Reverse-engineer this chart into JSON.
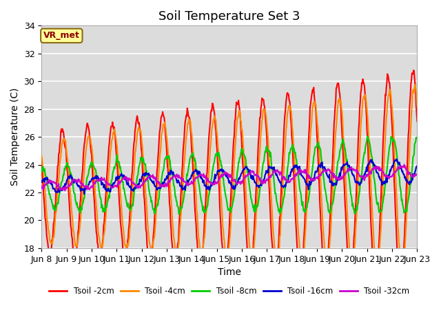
{
  "title": "Soil Temperature Set 3",
  "xlabel": "Time",
  "ylabel": "Soil Temperature (C)",
  "ylim": [
    18,
    34
  ],
  "background_color": "#dcdcdc",
  "grid_color": "white",
  "annotation_text": "VR_met",
  "annotation_bg": "#ffff99",
  "annotation_border": "#8B6914",
  "legend_labels": [
    "Tsoil -2cm",
    "Tsoil -4cm",
    "Tsoil -8cm",
    "Tsoil -16cm",
    "Tsoil -32cm"
  ],
  "line_colors": [
    "#ff0000",
    "#ff8800",
    "#00cc00",
    "#0000cc",
    "#cc00cc"
  ],
  "line_widths": [
    1.5,
    1.5,
    1.5,
    1.5,
    1.5
  ],
  "tick_label_fontsize": 9,
  "axis_label_fontsize": 10,
  "title_fontsize": 13,
  "yticks": [
    18,
    20,
    22,
    24,
    26,
    28,
    30,
    32,
    34
  ]
}
